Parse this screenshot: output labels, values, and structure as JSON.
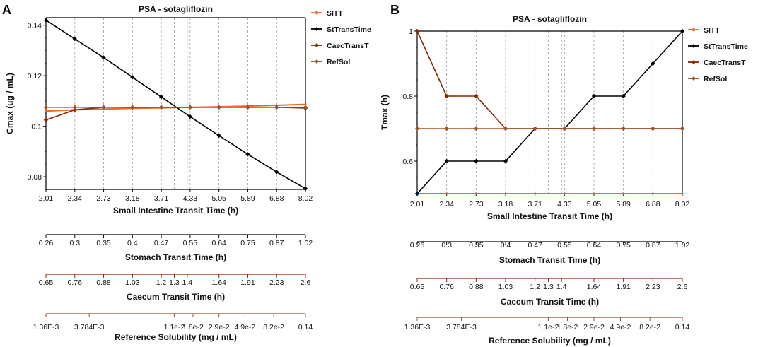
{
  "panels": {
    "A": {
      "letter": "A"
    },
    "B": {
      "letter": "B"
    }
  },
  "colors": {
    "SITT": "#f26522",
    "StTransTime": "#000000",
    "CaecTransT": "#8b2500",
    "RefSol": "#a0522d",
    "grid": "#999999"
  },
  "extra_axes": [
    {
      "label": "Stomach Transit Time (h)",
      "color": "#000000",
      "ticks": [
        "0.26",
        "0.3",
        "0.35",
        "0.4",
        "0.47",
        "0.55",
        "0.64",
        "0.75",
        "0.87",
        "1.02"
      ]
    },
    {
      "label": "Caecum Transit Time (h)",
      "color": "#8b2500",
      "ticks": [
        "0.65",
        "0.76",
        "0.88",
        "1.03",
        "1.2",
        "1.3",
        "1.4",
        "1.64",
        "1.91",
        "2.23",
        "2.6"
      ]
    },
    {
      "label": "Reference Solubility (mg / mL)",
      "color": "#a0522d",
      "ticks": [
        "1.36E-3",
        "3.784E-3",
        "1.1e-2",
        "1.8e-2",
        "2.9e-2",
        "4.9e-2",
        "8.2e-2",
        "0.14"
      ]
    }
  ],
  "chart_data": [
    {
      "panel": "A",
      "type": "line",
      "title": "PSA - sotagliflozin",
      "xlabel": "Small Intestine Transit Time (h)",
      "ylabel": "Cmax (ug / mL)",
      "categories": [
        "2.01",
        "2.34",
        "2.73",
        "3.18",
        "3.71",
        "4.33",
        "5.05",
        "5.89",
        "6.88",
        "8.02"
      ],
      "yticks": [
        "0.08",
        "0.1",
        "0.12",
        "0.14"
      ],
      "ylim": [
        0.075,
        0.143
      ],
      "series": [
        {
          "name": "SITT",
          "values": [
            0.106,
            0.1065,
            0.1068,
            0.1071,
            0.1073,
            0.1075,
            0.1077,
            0.108,
            0.1083,
            0.1087
          ]
        },
        {
          "name": "StTransTime",
          "values": [
            0.142,
            0.1346,
            0.1272,
            0.1194,
            0.1116,
            0.1038,
            0.0963,
            0.0889,
            0.0819,
            0.0753
          ]
        },
        {
          "name": "CaecTransT",
          "values": [
            0.1025,
            0.1065,
            0.1075,
            0.1075,
            0.1075,
            0.1075,
            0.1075,
            0.1075,
            0.1075,
            0.1072
          ]
        },
        {
          "name": "RefSol",
          "values": [
            0.1075,
            0.1075,
            0.1075,
            0.1075,
            0.1075,
            0.1075,
            0.1075,
            0.1075,
            0.1075,
            0.1075
          ]
        }
      ]
    },
    {
      "panel": "B",
      "type": "line",
      "title": "PSA - sotagliflozin",
      "xlabel": "Small Intestine Transit Time (h)",
      "ylabel": "Tmax (h)",
      "categories": [
        "2.01",
        "2.34",
        "2.73",
        "3.18",
        "3.71",
        "4.33",
        "5.05",
        "5.89",
        "6.88",
        "8.02"
      ],
      "yticks": [
        "0.6",
        "0.8",
        "1"
      ],
      "ylim": [
        0.5,
        1.0
      ],
      "series": [
        {
          "name": "SITT",
          "values": [
            0.5,
            0.5,
            0.5,
            0.5,
            0.5,
            0.5,
            0.5,
            0.5,
            0.5,
            0.5
          ]
        },
        {
          "name": "StTransTime",
          "values": [
            0.5,
            0.6,
            0.6,
            0.6,
            0.7,
            0.7,
            0.8,
            0.8,
            0.9,
            1.0
          ]
        },
        {
          "name": "CaecTransT",
          "values": [
            1.0,
            0.8,
            0.8,
            0.7,
            0.7,
            0.7,
            0.7,
            0.7,
            0.7,
            0.7
          ]
        },
        {
          "name": "RefSol",
          "values": [
            0.7,
            0.7,
            0.7,
            0.7,
            0.7,
            0.7,
            0.7,
            0.7,
            0.7,
            0.7
          ]
        }
      ]
    }
  ]
}
